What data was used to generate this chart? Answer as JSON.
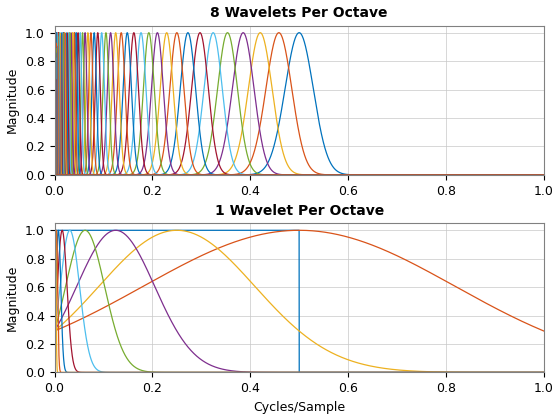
{
  "title1": "8 Wavelets Per Octave",
  "title2": "1 Wavelet Per Octave",
  "ylabel": "Magnitude",
  "xlabel": "Cycles/Sample",
  "xlim": [
    0,
    1
  ],
  "ylim": [
    0,
    1.05
  ],
  "nv1": 8,
  "nv2": 1,
  "num_octaves": 5,
  "sigma": 1.0,
  "grid_color": "#c8c8c8",
  "background_color": "#ffffff",
  "matlab_colors": [
    "#0072BD",
    "#D95319",
    "#EDB120",
    "#7E2F8E",
    "#77AC30",
    "#4DBEEE",
    "#A2142F"
  ],
  "lw": 0.9,
  "title_fontsize": 10,
  "label_fontsize": 9
}
